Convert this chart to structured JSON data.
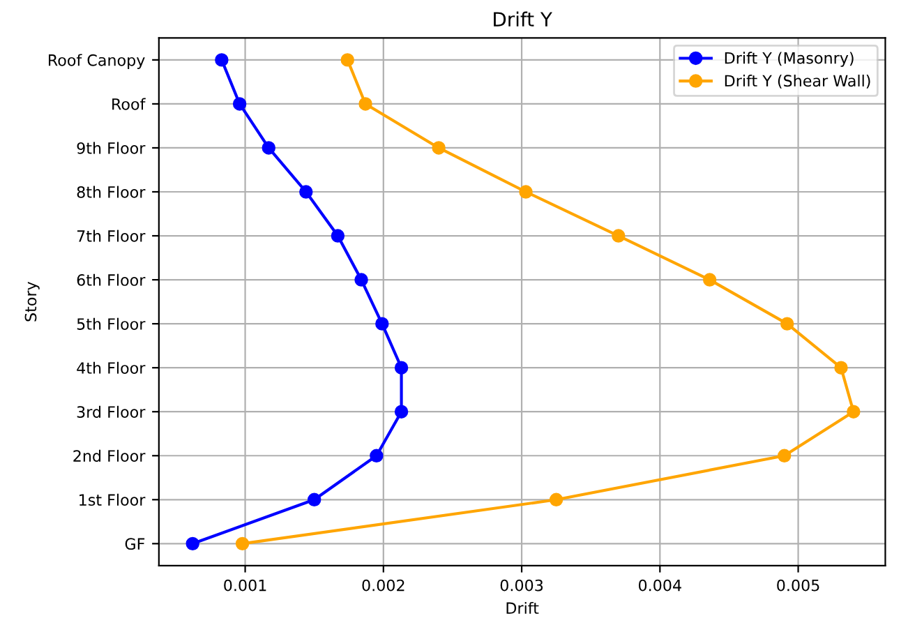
{
  "chart_data": {
    "type": "line",
    "orientation": "horizontal",
    "title": "Drift Y",
    "xlabel": "Drift",
    "ylabel": "Story",
    "categories": [
      "Roof Canopy",
      "Roof",
      "9th Floor",
      "8th Floor",
      "7th Floor",
      "6th Floor",
      "5th Floor",
      "4th Floor",
      "3rd Floor",
      "2nd Floor",
      "1st Floor",
      "GF"
    ],
    "series": [
      {
        "name": "Drift Y (Masonry)",
        "color": "#0000ff",
        "values": [
          0.00083,
          0.00096,
          0.00117,
          0.00144,
          0.00167,
          0.00184,
          0.00199,
          0.00213,
          0.00213,
          0.00195,
          0.0015,
          0.00062
        ]
      },
      {
        "name": "Drift Y (Shear Wall)",
        "color": "#ffa500",
        "values": [
          0.00174,
          0.00187,
          0.0024,
          0.00303,
          0.0037,
          0.00436,
          0.00492,
          0.00531,
          0.0054,
          0.0049,
          0.00325,
          0.00098
        ]
      }
    ],
    "xlim": [
      0.000376,
      0.00563
    ],
    "xticks": [
      0.001,
      0.002,
      0.003,
      0.004,
      0.005
    ],
    "grid": true,
    "legend": "top right",
    "marker": "circle",
    "line_style": "solid"
  }
}
